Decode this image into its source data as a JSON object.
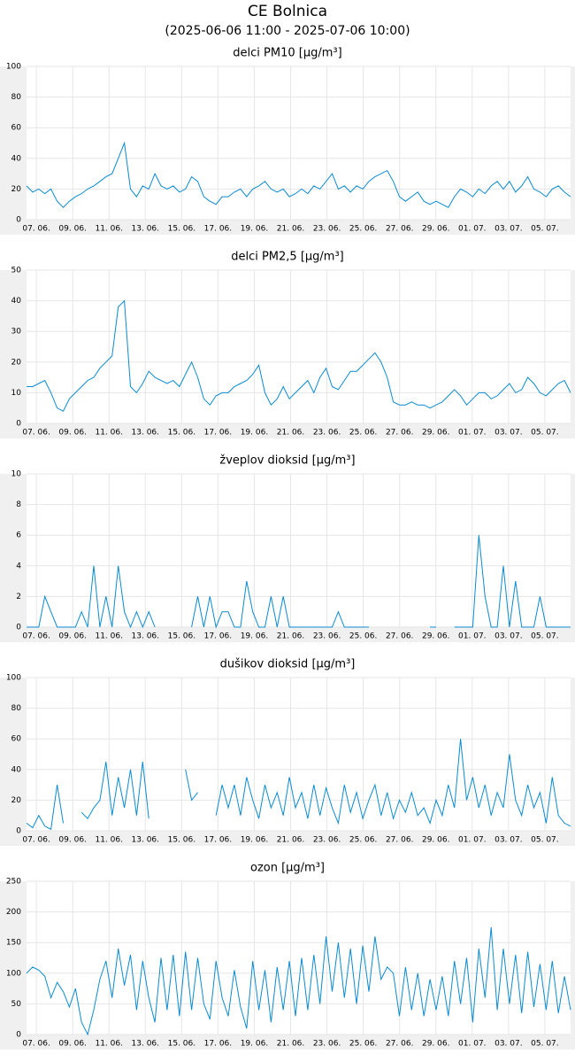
{
  "header": {
    "title": "CE Bolnica",
    "subtitle": "(2025-06-06 11:00 - 2025-07-06 10:00)"
  },
  "chart_data": [
    {
      "type": "line",
      "title": "delci PM10 [µg/m³]",
      "xlim": [
        "2025-06-06 11:00",
        "2025-07-06 10:00"
      ],
      "ylim": [
        0,
        100
      ],
      "yticks": [
        0,
        20,
        40,
        60,
        80,
        100
      ],
      "grid": true,
      "xticks": [
        {
          "value": "2025-06-07 00:00",
          "label": "07. 06."
        },
        {
          "value": "2025-06-09 00:00",
          "label": "09. 06."
        },
        {
          "value": "2025-06-11 00:00",
          "label": "11. 06."
        },
        {
          "value": "2025-06-13 00:00",
          "label": "13. 06."
        },
        {
          "value": "2025-06-15 00:00",
          "label": "15. 06."
        },
        {
          "value": "2025-06-17 00:00",
          "label": "17. 06."
        },
        {
          "value": "2025-06-19 00:00",
          "label": "19. 06."
        },
        {
          "value": "2025-06-21 00:00",
          "label": "21. 06."
        },
        {
          "value": "2025-06-23 00:00",
          "label": "23. 06."
        },
        {
          "value": "2025-06-25 00:00",
          "label": "25. 06."
        },
        {
          "value": "2025-06-27 00:00",
          "label": "27. 06."
        },
        {
          "value": "2025-06-29 00:00",
          "label": "29. 06."
        },
        {
          "value": "2025-07-01 00:00",
          "label": "01. 07."
        },
        {
          "value": "2025-07-03 00:00",
          "label": "03. 07."
        },
        {
          "value": "2025-07-05 00:00",
          "label": "05. 07."
        }
      ],
      "series": [
        {
          "color": "#0a8bd0",
          "values": [
            22,
            18,
            20,
            17,
            20,
            12,
            8,
            12,
            15,
            17,
            20,
            22,
            25,
            28,
            30,
            40,
            50,
            20,
            15,
            22,
            20,
            30,
            22,
            20,
            22,
            18,
            20,
            28,
            25,
            15,
            12,
            10,
            15,
            15,
            18,
            20,
            15,
            20,
            22,
            25,
            20,
            18,
            20,
            15,
            17,
            20,
            17,
            22,
            20,
            25,
            30,
            20,
            22,
            18,
            22,
            20,
            25,
            28,
            30,
            32,
            25,
            15,
            12,
            15,
            18,
            12,
            10,
            12,
            10,
            8,
            15,
            20,
            18,
            15,
            20,
            17,
            22,
            25,
            20,
            25,
            18,
            22,
            28,
            20,
            18,
            15,
            20,
            22,
            18,
            15
          ]
        }
      ]
    },
    {
      "type": "line",
      "title": "delci PM2,5 [µg/m³]",
      "xlim": [
        "2025-06-06 11:00",
        "2025-07-06 10:00"
      ],
      "ylim": [
        0,
        50
      ],
      "yticks": [
        0,
        10,
        20,
        30,
        40,
        50
      ],
      "grid": true,
      "xticks": [
        {
          "value": "2025-06-07 00:00",
          "label": "07. 06."
        },
        {
          "value": "2025-06-09 00:00",
          "label": "09. 06."
        },
        {
          "value": "2025-06-11 00:00",
          "label": "11. 06."
        },
        {
          "value": "2025-06-13 00:00",
          "label": "13. 06."
        },
        {
          "value": "2025-06-15 00:00",
          "label": "15. 06."
        },
        {
          "value": "2025-06-17 00:00",
          "label": "17. 06."
        },
        {
          "value": "2025-06-19 00:00",
          "label": "19. 06."
        },
        {
          "value": "2025-06-21 00:00",
          "label": "21. 06."
        },
        {
          "value": "2025-06-23 00:00",
          "label": "23. 06."
        },
        {
          "value": "2025-06-25 00:00",
          "label": "25. 06."
        },
        {
          "value": "2025-06-27 00:00",
          "label": "27. 06."
        },
        {
          "value": "2025-06-29 00:00",
          "label": "29. 06."
        },
        {
          "value": "2025-07-01 00:00",
          "label": "01. 07."
        },
        {
          "value": "2025-07-03 00:00",
          "label": "03. 07."
        },
        {
          "value": "2025-07-05 00:00",
          "label": "05. 07."
        }
      ],
      "series": [
        {
          "color": "#0a8bd0",
          "values": [
            12,
            12,
            13,
            14,
            10,
            5,
            4,
            8,
            10,
            12,
            14,
            15,
            18,
            20,
            22,
            38,
            40,
            12,
            10,
            13,
            17,
            15,
            14,
            13,
            14,
            12,
            16,
            20,
            15,
            8,
            6,
            9,
            10,
            10,
            12,
            13,
            14,
            16,
            19,
            10,
            6,
            8,
            12,
            8,
            10,
            12,
            14,
            10,
            15,
            18,
            12,
            11,
            14,
            17,
            17,
            19,
            21,
            23,
            20,
            15,
            7,
            6,
            6,
            7,
            6,
            6,
            5,
            6,
            7,
            9,
            11,
            9,
            6,
            8,
            10,
            10,
            8,
            9,
            11,
            13,
            10,
            11,
            15,
            13,
            10,
            9,
            11,
            13,
            14,
            10
          ]
        }
      ]
    },
    {
      "type": "line",
      "title": "žveplov dioksid [µg/m³]",
      "xlim": [
        "2025-06-06 11:00",
        "2025-07-06 10:00"
      ],
      "ylim": [
        0,
        10
      ],
      "yticks": [
        0,
        2,
        4,
        6,
        8,
        10
      ],
      "grid": true,
      "xticks": [
        {
          "value": "2025-06-07 00:00",
          "label": "07. 06."
        },
        {
          "value": "2025-06-09 00:00",
          "label": "09. 06."
        },
        {
          "value": "2025-06-11 00:00",
          "label": "11. 06."
        },
        {
          "value": "2025-06-13 00:00",
          "label": "13. 06."
        },
        {
          "value": "2025-06-15 00:00",
          "label": "15. 06."
        },
        {
          "value": "2025-06-17 00:00",
          "label": "17. 06."
        },
        {
          "value": "2025-06-19 00:00",
          "label": "19. 06."
        },
        {
          "value": "2025-06-21 00:00",
          "label": "21. 06."
        },
        {
          "value": "2025-06-23 00:00",
          "label": "23. 06."
        },
        {
          "value": "2025-06-25 00:00",
          "label": "25. 06."
        },
        {
          "value": "2025-06-27 00:00",
          "label": "27. 06."
        },
        {
          "value": "2025-06-29 00:00",
          "label": "29. 06."
        },
        {
          "value": "2025-07-01 00:00",
          "label": "01. 07."
        },
        {
          "value": "2025-07-03 00:00",
          "label": "03. 07."
        },
        {
          "value": "2025-07-05 00:00",
          "label": "05. 07."
        }
      ],
      "series": [
        {
          "color": "#0a8bd0",
          "values": [
            0,
            0,
            0,
            2,
            1,
            0,
            0,
            0,
            0,
            1,
            0,
            4,
            0,
            2,
            0,
            4,
            1,
            0,
            1,
            0,
            1,
            0,
            null,
            null,
            null,
            null,
            null,
            0,
            2,
            0,
            2,
            0,
            1,
            1,
            0,
            0,
            3,
            1,
            0,
            0,
            2,
            0,
            2,
            0,
            0,
            0,
            0,
            0,
            0,
            0,
            0,
            1,
            0,
            0,
            0,
            0,
            0,
            null,
            null,
            null,
            null,
            null,
            null,
            null,
            null,
            null,
            0,
            0,
            null,
            null,
            0,
            0,
            0,
            0,
            6,
            2,
            0,
            0,
            4,
            0,
            3,
            0,
            0,
            0,
            2,
            0,
            0,
            0,
            0,
            0
          ]
        }
      ]
    },
    {
      "type": "line",
      "title": "dušikov dioksid [µg/m³]",
      "xlim": [
        "2025-06-06 11:00",
        "2025-07-06 10:00"
      ],
      "ylim": [
        0,
        100
      ],
      "yticks": [
        0,
        20,
        40,
        60,
        80,
        100
      ],
      "grid": true,
      "xticks": [
        {
          "value": "2025-06-07 00:00",
          "label": "07. 06."
        },
        {
          "value": "2025-06-09 00:00",
          "label": "09. 06."
        },
        {
          "value": "2025-06-11 00:00",
          "label": "11. 06."
        },
        {
          "value": "2025-06-13 00:00",
          "label": "13. 06."
        },
        {
          "value": "2025-06-15 00:00",
          "label": "15. 06."
        },
        {
          "value": "2025-06-17 00:00",
          "label": "17. 06."
        },
        {
          "value": "2025-06-19 00:00",
          "label": "19. 06."
        },
        {
          "value": "2025-06-21 00:00",
          "label": "21. 06."
        },
        {
          "value": "2025-06-23 00:00",
          "label": "23. 06."
        },
        {
          "value": "2025-06-25 00:00",
          "label": "25. 06."
        },
        {
          "value": "2025-06-27 00:00",
          "label": "27. 06."
        },
        {
          "value": "2025-06-29 00:00",
          "label": "29. 06."
        },
        {
          "value": "2025-07-01 00:00",
          "label": "01. 07."
        },
        {
          "value": "2025-07-03 00:00",
          "label": "03. 07."
        },
        {
          "value": "2025-07-05 00:00",
          "label": "05. 07."
        }
      ],
      "series": [
        {
          "color": "#0a8bd0",
          "values": [
            5,
            2,
            10,
            3,
            1,
            30,
            5,
            null,
            null,
            12,
            8,
            15,
            20,
            45,
            10,
            35,
            15,
            40,
            10,
            45,
            8,
            null,
            null,
            null,
            null,
            null,
            40,
            20,
            25,
            null,
            null,
            10,
            30,
            15,
            30,
            10,
            35,
            20,
            8,
            30,
            15,
            25,
            10,
            35,
            15,
            25,
            8,
            30,
            10,
            28,
            15,
            5,
            30,
            12,
            25,
            8,
            20,
            30,
            10,
            25,
            8,
            20,
            12,
            25,
            10,
            15,
            5,
            20,
            10,
            30,
            15,
            60,
            20,
            35,
            15,
            30,
            10,
            25,
            15,
            50,
            20,
            10,
            30,
            15,
            25,
            5,
            35,
            10,
            5,
            3
          ]
        }
      ]
    },
    {
      "type": "line",
      "title": "ozon [µg/m³]",
      "xlim": [
        "2025-06-06 11:00",
        "2025-07-06 10:00"
      ],
      "ylim": [
        0,
        250
      ],
      "yticks": [
        0,
        50,
        100,
        150,
        200,
        250
      ],
      "grid": true,
      "xticks": [
        {
          "value": "2025-06-07 00:00",
          "label": "07. 06."
        },
        {
          "value": "2025-06-09 00:00",
          "label": "09. 06."
        },
        {
          "value": "2025-06-11 00:00",
          "label": "11. 06."
        },
        {
          "value": "2025-06-13 00:00",
          "label": "13. 06."
        },
        {
          "value": "2025-06-15 00:00",
          "label": "15. 06."
        },
        {
          "value": "2025-06-17 00:00",
          "label": "17. 06."
        },
        {
          "value": "2025-06-19 00:00",
          "label": "19. 06."
        },
        {
          "value": "2025-06-21 00:00",
          "label": "21. 06."
        },
        {
          "value": "2025-06-23 00:00",
          "label": "23. 06."
        },
        {
          "value": "2025-06-25 00:00",
          "label": "25. 06."
        },
        {
          "value": "2025-06-27 00:00",
          "label": "27. 06."
        },
        {
          "value": "2025-06-29 00:00",
          "label": "29. 06."
        },
        {
          "value": "2025-07-01 00:00",
          "label": "01. 07."
        },
        {
          "value": "2025-07-03 00:00",
          "label": "03. 07."
        },
        {
          "value": "2025-07-05 00:00",
          "label": "05. 07."
        }
      ],
      "series": [
        {
          "color": "#0a8bd0",
          "values": [
            100,
            110,
            105,
            95,
            60,
            85,
            70,
            45,
            75,
            20,
            0,
            40,
            90,
            120,
            60,
            140,
            80,
            130,
            40,
            120,
            60,
            20,
            125,
            40,
            130,
            30,
            135,
            40,
            125,
            50,
            25,
            120,
            60,
            30,
            105,
            45,
            10,
            120,
            40,
            105,
            20,
            110,
            40,
            120,
            30,
            125,
            40,
            130,
            50,
            160,
            70,
            150,
            60,
            140,
            50,
            145,
            70,
            160,
            90,
            110,
            100,
            30,
            110,
            40,
            100,
            30,
            90,
            40,
            95,
            30,
            120,
            50,
            125,
            20,
            140,
            60,
            175,
            40,
            140,
            50,
            130,
            35,
            135,
            45,
            115,
            40,
            120,
            35,
            95,
            40
          ]
        }
      ]
    }
  ]
}
